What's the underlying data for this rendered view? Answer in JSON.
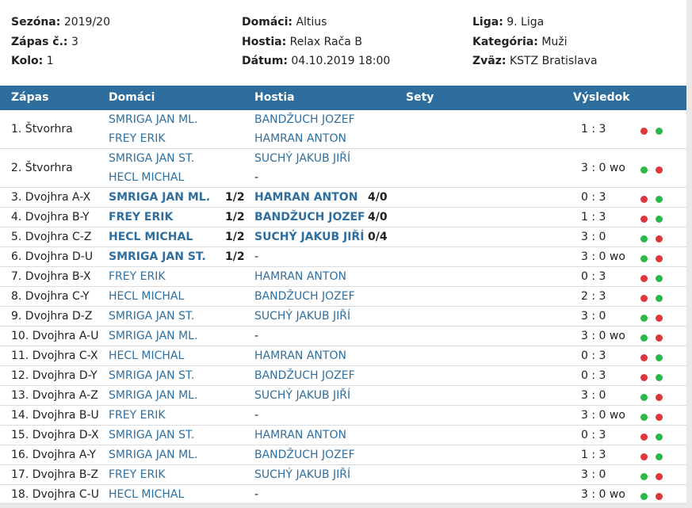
{
  "info": {
    "col1": [
      {
        "k": "Sezóna:",
        "v": "2019/20"
      },
      {
        "k": "Zápas č.:",
        "v": "3"
      },
      {
        "k": "Kolo:",
        "v": "1"
      }
    ],
    "col2": [
      {
        "k": "Domáci:",
        "v": "Altius"
      },
      {
        "k": "Hostia:",
        "v": "Relax Rača B"
      },
      {
        "k": "Dátum:",
        "v": "04.10.2019 18:00"
      }
    ],
    "col3": [
      {
        "k": "Liga:",
        "v": "9. Liga"
      },
      {
        "k": "Kategória:",
        "v": "Muži"
      },
      {
        "k": "Zväz:",
        "v": "KSTZ Bratislava"
      }
    ]
  },
  "headers": {
    "match": "Zápas",
    "home": "Domáci",
    "away": "Hostia",
    "sets": "Sety",
    "result": "Výsledok"
  },
  "colors": {
    "header_bg": "#2d6e9e",
    "link": "#2f6f9f",
    "red": "#e0353b",
    "green": "#2bb84a"
  },
  "rows": [
    {
      "label": "1. Štvorhra",
      "home": [
        "SMRIGA JAN ML.",
        "FREY ERIK"
      ],
      "away": [
        "BANDŽUCH JOZEF",
        "HAMRAN ANTON"
      ],
      "result": "1 : 3",
      "dots": [
        "red",
        "green"
      ]
    },
    {
      "label": "2. Štvorhra",
      "home": [
        "SMRIGA JAN ST.",
        "HECL MICHAL"
      ],
      "away": [
        "SUCHÝ JAKUB JIŘÍ",
        "-"
      ],
      "result": "3 : 0 wo",
      "dots": [
        "green",
        "red"
      ]
    },
    {
      "label": "3. Dvojhra A-X",
      "home": [
        "SMRIGA JAN ML."
      ],
      "home_stat": "1/2",
      "away": [
        "HAMRAN ANTON"
      ],
      "away_stat": "4/0",
      "bold": true,
      "result": "0 : 3",
      "dots": [
        "red",
        "green"
      ]
    },
    {
      "label": "4. Dvojhra B-Y",
      "home": [
        "FREY ERIK"
      ],
      "home_stat": "1/2",
      "away": [
        "BANDŽUCH JOZEF"
      ],
      "away_stat": "4/0",
      "bold": true,
      "result": "1 : 3",
      "dots": [
        "red",
        "green"
      ]
    },
    {
      "label": "5. Dvojhra C-Z",
      "home": [
        "HECL MICHAL"
      ],
      "home_stat": "1/2",
      "away": [
        "SUCHÝ JAKUB JIŘÍ"
      ],
      "away_stat": "0/4",
      "bold": true,
      "result": "3 : 0",
      "dots": [
        "green",
        "red"
      ]
    },
    {
      "label": "6. Dvojhra D-U",
      "home": [
        "SMRIGA JAN ST."
      ],
      "home_stat": "1/2",
      "away": [
        "-"
      ],
      "bold": true,
      "result": "3 : 0 wo",
      "dots": [
        "green",
        "red"
      ]
    },
    {
      "label": "7. Dvojhra B-X",
      "home": [
        "FREY ERIK"
      ],
      "away": [
        "HAMRAN ANTON"
      ],
      "result": "0 : 3",
      "dots": [
        "red",
        "green"
      ]
    },
    {
      "label": "8. Dvojhra C-Y",
      "home": [
        "HECL MICHAL"
      ],
      "away": [
        "BANDŽUCH JOZEF"
      ],
      "result": "2 : 3",
      "dots": [
        "red",
        "green"
      ]
    },
    {
      "label": "9. Dvojhra D-Z",
      "home": [
        "SMRIGA JAN ST."
      ],
      "away": [
        "SUCHÝ JAKUB JIŘÍ"
      ],
      "result": "3 : 0",
      "dots": [
        "green",
        "red"
      ]
    },
    {
      "label": "10. Dvojhra A-U",
      "home": [
        "SMRIGA JAN ML."
      ],
      "away": [
        "-"
      ],
      "result": "3 : 0 wo",
      "dots": [
        "green",
        "red"
      ]
    },
    {
      "label": "11. Dvojhra C-X",
      "home": [
        "HECL MICHAL"
      ],
      "away": [
        "HAMRAN ANTON"
      ],
      "result": "0 : 3",
      "dots": [
        "red",
        "green"
      ]
    },
    {
      "label": "12. Dvojhra D-Y",
      "home": [
        "SMRIGA JAN ST."
      ],
      "away": [
        "BANDŽUCH JOZEF"
      ],
      "result": "0 : 3",
      "dots": [
        "red",
        "green"
      ]
    },
    {
      "label": "13. Dvojhra A-Z",
      "home": [
        "SMRIGA JAN ML."
      ],
      "away": [
        "SUCHÝ JAKUB JIŘÍ"
      ],
      "result": "3 : 0",
      "dots": [
        "green",
        "red"
      ]
    },
    {
      "label": "14. Dvojhra B-U",
      "home": [
        "FREY ERIK"
      ],
      "away": [
        "-"
      ],
      "result": "3 : 0 wo",
      "dots": [
        "green",
        "red"
      ]
    },
    {
      "label": "15. Dvojhra D-X",
      "home": [
        "SMRIGA JAN ST."
      ],
      "away": [
        "HAMRAN ANTON"
      ],
      "result": "0 : 3",
      "dots": [
        "red",
        "green"
      ]
    },
    {
      "label": "16. Dvojhra A-Y",
      "home": [
        "SMRIGA JAN ML."
      ],
      "away": [
        "BANDŽUCH JOZEF"
      ],
      "result": "1 : 3",
      "dots": [
        "red",
        "green"
      ]
    },
    {
      "label": "17. Dvojhra B-Z",
      "home": [
        "FREY ERIK"
      ],
      "away": [
        "SUCHÝ JAKUB JIŘÍ"
      ],
      "result": "3 : 0",
      "dots": [
        "green",
        "red"
      ]
    },
    {
      "label": "18. Dvojhra C-U",
      "home": [
        "HECL MICHAL"
      ],
      "away": [
        "-"
      ],
      "result": "3 : 0 wo",
      "dots": [
        "green",
        "red"
      ]
    }
  ]
}
